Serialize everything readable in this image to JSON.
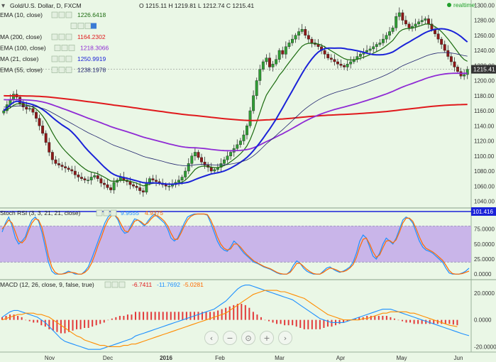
{
  "header": {
    "symbol": "Gold/U.S. Dollar, D, FXCM",
    "ohlc": "O 1215.11  H 1219.81  L 1212.74  C 1215.41",
    "realtime": "realtime",
    "last_price": "1215.41"
  },
  "legend": [
    {
      "label": "EMA (10, close)",
      "value": "1226.6418",
      "color": "#1b6b0f"
    },
    {
      "label": "",
      "value": "",
      "color": "#999999"
    },
    {
      "label": "MA (200, close)",
      "value": "1164.2302",
      "color": "#e0191c"
    },
    {
      "label": "EMA (100, close)",
      "value": "1218.3066",
      "color": "#8f2bd4"
    },
    {
      "label": "MA (21, close)",
      "value": "1250.9919",
      "color": "#1a22d8"
    },
    {
      "label": "EMA (55, close)",
      "value": "1238.1978",
      "color": "#20236e"
    }
  ],
  "stoch": {
    "label": "Stoch RSI (3, 3, 21, 21, close)",
    "k": "9.9555",
    "d": "4.9375",
    "level_label": "101.416"
  },
  "macd": {
    "label": "MACD (12, 26, close, 9, false, true)",
    "hist": "-6.7411",
    "macd": "-11.7692",
    "signal": "-5.0281"
  },
  "chart_data": [
    {
      "type": "candlestick",
      "title": "Gold/U.S. Dollar, D, FXCM",
      "x_labels": [
        "Nov",
        "Dec",
        "2016",
        "Feb",
        "Mar",
        "Apr",
        "May",
        "Jun"
      ],
      "y_ticks": [
        1040,
        1060,
        1080,
        1100,
        1120,
        1140,
        1160,
        1180,
        1200,
        1220,
        1240,
        1260,
        1280,
        1300
      ],
      "ylim": [
        1032,
        1305
      ],
      "close": [
        1160,
        1168,
        1175,
        1182,
        1178,
        1170,
        1165,
        1162,
        1163,
        1158,
        1150,
        1140,
        1130,
        1118,
        1105,
        1095,
        1090,
        1088,
        1086,
        1084,
        1082,
        1080,
        1075,
        1072,
        1070,
        1068,
        1068,
        1072,
        1074,
        1070,
        1064,
        1062,
        1058,
        1055,
        1065,
        1068,
        1072,
        1068,
        1066,
        1062,
        1060,
        1058,
        1054,
        1052,
        1065,
        1070,
        1068,
        1066,
        1064,
        1062,
        1060,
        1060,
        1062,
        1065,
        1068,
        1072,
        1080,
        1090,
        1100,
        1105,
        1098,
        1092,
        1088,
        1085,
        1080,
        1082,
        1085,
        1090,
        1095,
        1100,
        1105,
        1110,
        1115,
        1120,
        1128,
        1140,
        1160,
        1180,
        1200,
        1215,
        1225,
        1230,
        1218,
        1222,
        1228,
        1240,
        1235,
        1245,
        1250,
        1255,
        1260,
        1265,
        1268,
        1260,
        1255,
        1250,
        1248,
        1245,
        1240,
        1235,
        1230,
        1228,
        1225,
        1222,
        1220,
        1218,
        1222,
        1225,
        1228,
        1232,
        1235,
        1238,
        1240,
        1242,
        1245,
        1248,
        1250,
        1255,
        1260,
        1265,
        1270,
        1285,
        1290,
        1280,
        1275,
        1270,
        1272,
        1275,
        1278,
        1280,
        1282,
        1275,
        1268,
        1262,
        1255,
        1248,
        1240,
        1232,
        1225,
        1218,
        1212,
        1206,
        1208,
        1215
      ],
      "series": [
        {
          "name": "EMA (10, close)",
          "color": "#1b6b0f"
        },
        {
          "name": "MA (200, close)",
          "color": "#e0191c"
        },
        {
          "name": "EMA (100, close)",
          "color": "#8f2bd4"
        },
        {
          "name": "MA (21, close)",
          "color": "#1a22d8"
        },
        {
          "name": "EMA (55, close)",
          "color": "#20236e"
        }
      ]
    },
    {
      "type": "line",
      "title": "Stoch RSI (3, 3, 21, 21, close)",
      "y_ticks": [
        0,
        25,
        50,
        75
      ],
      "ylim": [
        -8,
        110
      ],
      "band": [
        20,
        80
      ],
      "series": [
        {
          "name": "K",
          "color": "#1e90ff",
          "values": [
            70,
            85,
            95,
            80,
            60,
            50,
            55,
            62,
            78,
            90,
            95,
            88,
            70,
            45,
            20,
            5,
            0,
            0,
            0,
            2,
            5,
            3,
            0,
            0,
            0,
            5,
            12,
            25,
            40,
            55,
            70,
            85,
            95,
            100,
            98,
            90,
            75,
            68,
            70,
            82,
            92,
            90,
            85,
            80,
            88,
            95,
            100,
            95,
            90,
            85,
            75,
            60,
            55,
            60,
            72,
            85,
            95,
            98,
            100,
            100,
            100,
            100,
            98,
            85,
            70,
            55,
            45,
            40,
            38,
            45,
            55,
            50,
            42,
            35,
            30,
            25,
            20,
            18,
            15,
            12,
            10,
            8,
            5,
            2,
            0,
            0,
            0,
            5,
            15,
            22,
            18,
            10,
            5,
            2,
            0,
            0,
            0,
            5,
            10,
            12,
            8,
            5,
            3,
            5,
            8,
            12,
            20,
            35,
            55,
            65,
            60,
            45,
            30,
            25,
            35,
            50,
            60,
            55,
            50,
            60,
            75,
            90,
            95,
            92,
            85,
            70,
            55,
            45,
            40,
            38,
            35,
            30,
            25,
            20,
            10,
            2,
            0,
            0,
            0,
            2,
            5,
            9.96
          ]
        },
        {
          "name": "D",
          "color": "#ff6a00",
          "values": [
            75,
            82,
            90,
            85,
            70,
            55,
            52,
            58,
            72,
            85,
            92,
            90,
            78,
            55,
            30,
            12,
            3,
            0,
            0,
            1,
            3,
            3,
            2,
            0,
            0,
            3,
            8,
            18,
            32,
            48,
            62,
            78,
            90,
            97,
            98,
            93,
            82,
            72,
            70,
            78,
            88,
            90,
            87,
            82,
            85,
            92,
            97,
            97,
            93,
            88,
            80,
            68,
            58,
            58,
            68,
            80,
            90,
            96,
            99,
            100,
            100,
            100,
            99,
            90,
            77,
            62,
            50,
            43,
            40,
            42,
            50,
            50,
            45,
            38,
            32,
            27,
            22,
            19,
            16,
            13,
            11,
            9,
            6,
            3,
            1,
            0,
            0,
            3,
            10,
            18,
            18,
            13,
            8,
            4,
            1,
            0,
            0,
            3,
            7,
            10,
            9,
            7,
            4,
            4,
            6,
            10,
            16,
            28,
            45,
            58,
            60,
            50,
            37,
            28,
            32,
            44,
            55,
            56,
            52,
            57,
            70,
            85,
            93,
            93,
            88,
            76,
            62,
            50,
            43,
            40,
            37,
            33,
            28,
            23,
            15,
            6,
            1,
            0,
            0,
            1,
            3,
            4.94
          ]
        }
      ]
    },
    {
      "type": "line",
      "title": "MACD (12, 26, close, 9, false, true)",
      "y_ticks": [
        20,
        0,
        -20
      ],
      "ylim": [
        -24,
        30
      ],
      "series": [
        {
          "name": "MACD",
          "color": "#1e90ff",
          "values": [
            2,
            4,
            6,
            7,
            7,
            6,
            5,
            4,
            3,
            2,
            0,
            -2,
            -5,
            -8,
            -11,
            -14,
            -16,
            -17,
            -18,
            -19,
            -20,
            -21,
            -22,
            -22,
            -22,
            -22,
            -21,
            -20,
            -19,
            -18,
            -17,
            -16,
            -15,
            -14,
            -12,
            -11,
            -10,
            -9,
            -8,
            -7,
            -6,
            -5,
            -4,
            -3,
            -2,
            -1,
            0,
            1,
            2,
            3,
            4,
            5,
            6,
            7,
            8,
            10,
            12,
            14,
            17,
            20,
            23,
            25,
            26,
            26,
            25,
            24,
            23,
            22,
            21,
            20,
            19,
            18,
            17,
            16,
            15,
            13,
            11,
            9,
            7,
            5,
            3,
            1,
            0,
            -1,
            -2,
            -2,
            -2,
            -2,
            -1,
            0,
            1,
            2,
            3,
            4,
            5,
            6,
            7,
            8,
            8,
            8,
            7,
            6,
            5,
            4,
            3,
            2,
            1,
            0,
            -1,
            -2,
            -3,
            -4,
            -5,
            -6,
            -7,
            -8,
            -9,
            -10,
            -11,
            -11.77
          ]
        },
        {
          "name": "Signal",
          "color": "#ff8c00",
          "values": [
            0,
            1,
            2,
            3,
            4,
            4,
            5,
            5,
            5,
            4,
            4,
            3,
            2,
            0,
            -2,
            -4,
            -6,
            -8,
            -10,
            -12,
            -13,
            -15,
            -16,
            -17,
            -18,
            -19,
            -19,
            -20,
            -20,
            -20,
            -20,
            -19,
            -19,
            -18,
            -18,
            -17,
            -16,
            -15,
            -14,
            -13,
            -12,
            -11,
            -10,
            -9,
            -8,
            -7,
            -6,
            -5,
            -4,
            -3,
            -2,
            -1,
            0,
            1,
            2,
            3,
            4,
            5,
            7,
            9,
            11,
            13,
            15,
            17,
            19,
            20,
            21,
            22,
            22,
            22,
            22,
            21,
            21,
            20,
            19,
            18,
            17,
            16,
            14,
            12,
            10,
            8,
            6,
            4,
            3,
            2,
            1,
            0,
            0,
            0,
            0,
            0,
            1,
            1,
            2,
            3,
            4,
            5,
            5,
            6,
            6,
            6,
            6,
            6,
            5,
            5,
            4,
            3,
            2,
            1,
            0,
            -1,
            -2,
            -3,
            -4,
            -4.5,
            -5.03
          ]
        },
        {
          "name": "Histogram",
          "color": "#e0191c",
          "values": []
        }
      ]
    }
  ],
  "controls": [
    "‹",
    "−",
    "⊙",
    "+",
    "›"
  ]
}
